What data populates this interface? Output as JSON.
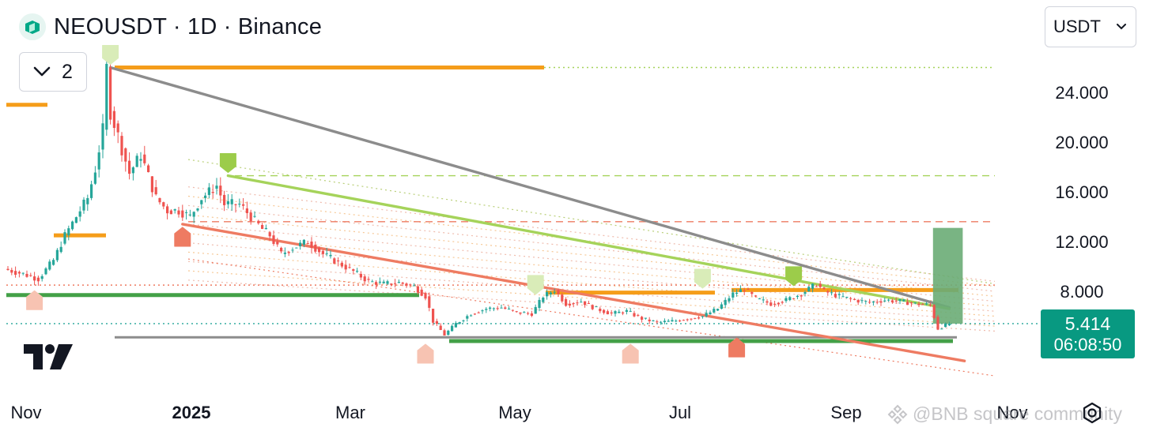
{
  "header": {
    "title": "NEOUSDT · 1D · Binance",
    "symbol_icon": "neo-coin-icon"
  },
  "indicators": {
    "collapse_icon": "chevron-down-icon",
    "count": "2"
  },
  "currency": {
    "selected": "USDT",
    "icon": "chevron-down-icon"
  },
  "price_tag": {
    "price": "5.414",
    "countdown": "06:08:50",
    "color": "#089981"
  },
  "watermark": {
    "text": "@BNB square community",
    "icon": "bnb-logo-icon"
  },
  "settings_icon": "gear-icon",
  "logo": "tradingview-logo-icon",
  "colors": {
    "up": "#26a69a",
    "down": "#ef5350",
    "orange": "#f59d1a",
    "green_line": "#43a047",
    "light_green": "#a5d35a",
    "salmon": "#ee7b62",
    "gray": "#8c8c8c",
    "grid_dot": "#c7ccd6"
  },
  "chart_data": {
    "type": "candlestick",
    "x_axis": {
      "tick_labels": [
        "Nov",
        "2025",
        "Mar",
        "May",
        "Jul",
        "Sep",
        "Nov"
      ]
    },
    "y_axis": {
      "tick_labels": [
        "24.000",
        "20.000",
        "16.000",
        "12.000",
        "8.000"
      ],
      "ticks": [
        24,
        20,
        16,
        12,
        8
      ]
    },
    "last_price": 5.414,
    "price_path": [
      [
        0,
        9.8
      ],
      [
        5,
        9.4
      ],
      [
        9,
        9.0
      ],
      [
        13,
        10.5
      ],
      [
        16,
        12.5
      ],
      [
        19,
        14.0
      ],
      [
        22,
        15.5
      ],
      [
        24,
        17.8
      ],
      [
        26,
        21.0
      ],
      [
        27,
        26.0
      ],
      [
        28,
        22.5
      ],
      [
        30,
        20.5
      ],
      [
        33,
        17.5
      ],
      [
        36,
        19.0
      ],
      [
        40,
        15.5
      ],
      [
        43,
        14.5
      ],
      [
        46,
        14.5
      ],
      [
        49,
        14.0
      ],
      [
        52,
        15.5
      ],
      [
        56,
        16.5
      ],
      [
        58,
        15.0
      ],
      [
        62,
        15.0
      ],
      [
        65,
        14.0
      ],
      [
        68,
        13.0
      ],
      [
        70,
        12.5
      ],
      [
        73,
        11.0
      ],
      [
        76,
        11.5
      ],
      [
        80,
        12.0
      ],
      [
        84,
        11.0
      ],
      [
        88,
        10.3
      ],
      [
        92,
        9.6
      ],
      [
        96,
        8.8
      ],
      [
        100,
        8.6
      ],
      [
        104,
        8.7
      ],
      [
        108,
        8.4
      ],
      [
        111,
        7.6
      ],
      [
        113,
        5.6
      ],
      [
        116,
        4.5
      ],
      [
        119,
        5.4
      ],
      [
        123,
        6.2
      ],
      [
        127,
        6.6
      ],
      [
        131,
        6.7
      ],
      [
        135,
        6.3
      ],
      [
        139,
        6.2
      ],
      [
        142,
        7.6
      ],
      [
        145,
        8.1
      ],
      [
        148,
        7.0
      ],
      [
        152,
        7.2
      ],
      [
        156,
        6.6
      ],
      [
        160,
        6.2
      ],
      [
        164,
        6.4
      ],
      [
        168,
        5.8
      ],
      [
        172,
        5.5
      ],
      [
        176,
        5.6
      ],
      [
        180,
        5.8
      ],
      [
        184,
        6.0
      ],
      [
        188,
        6.6
      ],
      [
        192,
        7.8
      ],
      [
        195,
        8.2
      ],
      [
        198,
        7.4
      ],
      [
        202,
        7.0
      ],
      [
        206,
        7.3
      ],
      [
        210,
        7.8
      ],
      [
        214,
        8.6
      ],
      [
        216,
        8.0
      ],
      [
        220,
        7.6
      ],
      [
        224,
        7.3
      ],
      [
        228,
        7.1
      ],
      [
        232,
        7.3
      ],
      [
        236,
        7.2
      ],
      [
        240,
        7.0
      ],
      [
        244,
        6.9
      ],
      [
        246,
        5.0
      ],
      [
        249,
        5.4
      ]
    ],
    "horizontal_levels": [
      {
        "price": 26.0,
        "style": "solid",
        "color": "orange"
      },
      {
        "price": 26.0,
        "style": "dotted",
        "color": "light_green"
      },
      {
        "price": 23.0,
        "style": "solid",
        "color": "orange"
      },
      {
        "price": 12.5,
        "style": "solid",
        "color": "orange"
      },
      {
        "price": 17.3,
        "style": "dashed",
        "color": "light_green"
      },
      {
        "price": 13.6,
        "style": "dashed",
        "color": "salmon"
      },
      {
        "price": 8.5,
        "style": "dotted",
        "color": "salmon"
      },
      {
        "price": 7.7,
        "style": "solid",
        "color": "green_line"
      },
      {
        "price": 7.9,
        "style": "solid",
        "color": "orange"
      },
      {
        "price": 8.1,
        "style": "solid",
        "color": "orange"
      },
      {
        "price": 5.4,
        "style": "dotted",
        "color": "up"
      },
      {
        "price": 4.3,
        "style": "solid",
        "color": "gray"
      },
      {
        "price": 4.0,
        "style": "solid",
        "color": "green_line"
      }
    ],
    "trend_lines": [
      {
        "from": [
          27,
          26.0
        ],
        "to": [
          248,
          6.7
        ],
        "color": "gray"
      },
      {
        "from": [
          58,
          17.3
        ],
        "to": [
          248,
          6.6
        ],
        "color": "light_green"
      },
      {
        "from": [
          46,
          13.4
        ],
        "to": [
          252,
          2.4
        ],
        "color": "salmon"
      }
    ],
    "signal_markers": [
      {
        "x": 27,
        "price": 26.0,
        "type": "peak",
        "color": "#d9ecb8"
      },
      {
        "x": 58,
        "price": 17.3,
        "type": "peak",
        "color": "#9ccc4a"
      },
      {
        "x": 46,
        "price": 13.4,
        "type": "trough",
        "color": "#ee7b62"
      },
      {
        "x": 7,
        "price": 8.3,
        "type": "trough",
        "color": "#f7c3b2"
      },
      {
        "x": 139,
        "price": 7.5,
        "type": "peak",
        "color": "#d9ecb8"
      },
      {
        "x": 110,
        "price": 4.0,
        "type": "trough",
        "color": "#f7c3b2"
      },
      {
        "x": 164,
        "price": 4.0,
        "type": "trough",
        "color": "#f7c3b2"
      },
      {
        "x": 183,
        "price": 8.0,
        "type": "peak",
        "color": "#d9ecb8"
      },
      {
        "x": 192,
        "price": 4.5,
        "type": "trough",
        "color": "#ee7b62"
      },
      {
        "x": 207,
        "price": 8.2,
        "type": "peak",
        "color": "#9ccc4a"
      }
    ],
    "position_box": {
      "x_start": 241,
      "x_end": 248,
      "top": 13.1,
      "bottom": 5.4,
      "color": "#6aac76"
    }
  }
}
